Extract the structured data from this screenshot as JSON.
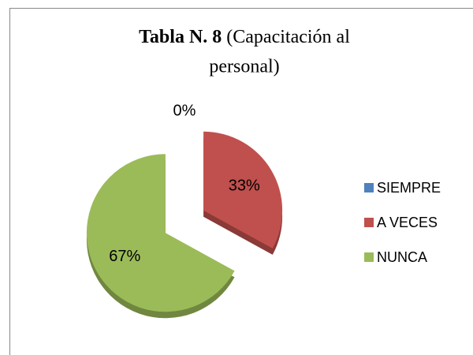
{
  "chart_data": {
    "type": "pie",
    "title": [
      "Tabla N. 8",
      "(Capacitación al",
      "personal)"
    ],
    "categories": [
      "SIEMPRE",
      "A VECES",
      "NUNCA"
    ],
    "values": [
      0,
      33,
      67
    ],
    "value_labels": [
      "0%",
      "33%",
      "67%"
    ],
    "colors": [
      "#4f81bd",
      "#c0504d",
      "#9bbb59"
    ],
    "exploded": true,
    "legend": "right"
  }
}
